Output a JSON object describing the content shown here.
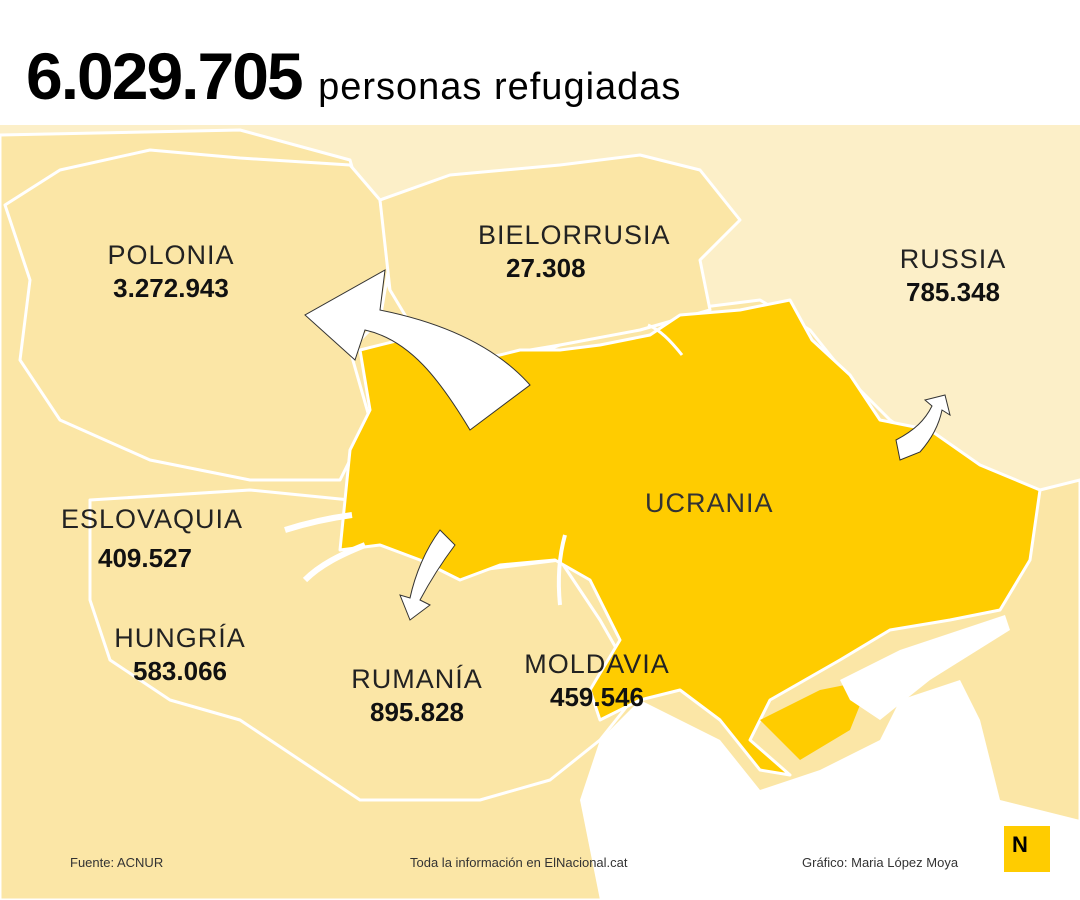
{
  "headline": {
    "total": "6.029.705",
    "label": "personas refugiadas"
  },
  "countries": {
    "polonia": {
      "name": "POLONIA",
      "value": "3.272.943"
    },
    "bielorrusia": {
      "name": "BIELORRUSIA",
      "value": "27.308"
    },
    "russia": {
      "name": "RUSSIA",
      "value": "785.348"
    },
    "eslovaquia": {
      "name": "ESLOVAQUIA",
      "value": "409.527"
    },
    "hungria": {
      "name": "HUNGRÍA",
      "value": "583.066"
    },
    "rumania": {
      "name": "RUMANÍA",
      "value": "895.828"
    },
    "moldavia": {
      "name": "MOLDAVIA",
      "value": "459.546"
    },
    "ucrania": {
      "name": "UCRANIA"
    }
  },
  "footer": {
    "source": "Fuente: ACNUR",
    "info": "Toda la información en ElNacional.cat",
    "credit": "Gráfico: Maria López Moya"
  },
  "logo": {
    "letter": "N"
  },
  "colors": {
    "ukraine": "#ffcc00",
    "neighbor": "#fbe6a6",
    "outer": "#fcefc8",
    "sea": "#ffffff",
    "border": "#ffffff",
    "arrow": "#ffffff"
  }
}
